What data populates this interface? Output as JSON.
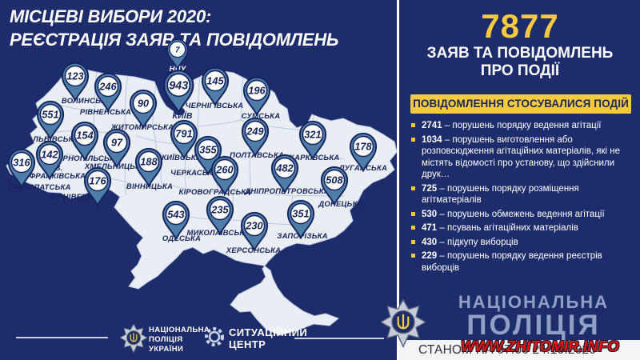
{
  "title": {
    "line1": "МІСЦЕВІ ВИБОРИ 2020:",
    "line2": "РЕЄСТРАЦІЯ ЗАЯВ ТА ПОВІДОМЛЕНЬ"
  },
  "map": {
    "regions": [
      {
        "name": [
          "НПУ"
        ],
        "value": "7",
        "pin": [
          222,
          62
        ],
        "label": [
          222,
          82
        ],
        "size": 0.78,
        "light": true
      },
      {
        "name": [
          "КИЇВ"
        ],
        "value": "943",
        "pin": [
          223,
          106
        ],
        "label": [
          228,
          140
        ],
        "size": 1.12,
        "lsize": 10.5
      },
      {
        "name": [
          "ВОЛИНСЬКА"
        ],
        "value": "123",
        "pin": [
          94,
          95
        ],
        "label": [
          108,
          122
        ]
      },
      {
        "name": [
          "РІВНЕНСЬКА"
        ],
        "value": "246",
        "pin": [
          135,
          108
        ],
        "label": [
          132,
          136
        ]
      },
      {
        "name": [
          "ЖИТОМИРСЬКА"
        ],
        "value": "90",
        "pin": [
          179,
          129
        ],
        "label": [
          178,
          155
        ]
      },
      {
        "name": [
          "ЧЕРНІГІВСЬКА"
        ],
        "value": "145",
        "pin": [
          269,
          101
        ],
        "label": [
          268,
          128
        ]
      },
      {
        "name": [
          "СУМСЬКА"
        ],
        "value": "196",
        "pin": [
          321,
          113
        ],
        "label": [
          326,
          141
        ]
      },
      {
        "name": [
          "ЛЬВІВСЬКА"
        ],
        "value": "551",
        "pin": [
          63,
          143
        ],
        "label": [
          70,
          170
        ]
      },
      {
        "name": [
          "ТЕРНОПІЛЬСЬКА"
        ],
        "value": "154",
        "pin": [
          106,
          169
        ],
        "label": [
          108,
          194
        ]
      },
      {
        "name": [
          "ХМЕЛЬНИЦЬКА"
        ],
        "value": "97",
        "pin": [
          146,
          178
        ],
        "label": [
          144,
          204
        ]
      },
      {
        "name": [
          "КИЇВСЬКА"
        ],
        "value": "791",
        "pin": [
          230,
          167
        ],
        "label": [
          227,
          193
        ]
      },
      {
        "name": [
          "ПОЛТАВСЬКА"
        ],
        "value": "249",
        "pin": [
          319,
          164
        ],
        "label": [
          321,
          190
        ]
      },
      {
        "name": [
          "ХАРКІВСЬКА"
        ],
        "value": "321",
        "pin": [
          391,
          168
        ],
        "label": [
          393,
          193
        ]
      },
      {
        "name": [
          "ЛУГАНСЬКА"
        ],
        "value": "178",
        "pin": [
          454,
          183
        ],
        "label": [
          454,
          206
        ]
      },
      {
        "name": [
          "ІВ.",
          "ФРАНКІВСЬКА"
        ],
        "value": "142",
        "pin": [
          62,
          193
        ],
        "label": [
          72,
          206
        ]
      },
      {
        "name": [
          "ЗАКАРПАТСЬКА"
        ],
        "value": "316",
        "pin": [
          27,
          203
        ],
        "label": [
          49,
          230
        ]
      },
      {
        "name": [
          "ЧЕРНІВЕЦЬКА"
        ],
        "value": "176",
        "pin": [
          122,
          226
        ],
        "label": [
          94,
          242
        ]
      },
      {
        "name": [
          "ВІННИЦЬКА"
        ],
        "value": "188",
        "pin": [
          186,
          202
        ],
        "label": [
          187,
          229
        ]
      },
      {
        "name": [
          "ЧЕРКАСЬКА"
        ],
        "value": "355",
        "pin": [
          260,
          187
        ],
        "label": [
          243,
          212
        ]
      },
      {
        "name": [
          "КІРОВОГРАДСЬКА"
        ],
        "value": "260",
        "pin": [
          281,
          212
        ],
        "label": [
          269,
          236
        ]
      },
      {
        "name": [
          "ДНІПРОПЕТРОВСЬКА"
        ],
        "value": "482",
        "pin": [
          356,
          210
        ],
        "label": [
          359,
          235
        ]
      },
      {
        "name": [
          "ДОНЕЦЬКА"
        ],
        "value": "508",
        "pin": [
          418,
          225
        ],
        "label": [
          426,
          251
        ]
      },
      {
        "name": [
          "ОДЕСЬКА"
        ],
        "value": "543",
        "pin": [
          220,
          268
        ],
        "label": [
          227,
          294
        ]
      },
      {
        "name": [
          "МИКОЛАЇВСЬКА"
        ],
        "value": "235",
        "pin": [
          275,
          262
        ],
        "label": [
          273,
          287
        ]
      },
      {
        "name": [
          "ХЕРСОНСЬКА"
        ],
        "value": "230",
        "pin": [
          318,
          282
        ],
        "label": [
          317,
          309
        ]
      },
      {
        "name": [
          "ЗАПОРІЗЬКА"
        ],
        "value": "351",
        "pin": [
          376,
          267
        ],
        "label": [
          378,
          291
        ]
      }
    ]
  },
  "footer": {
    "police_lines": [
      "НАЦІОНАЛЬНА",
      "ПОЛІЦІЯ",
      "УКРАЇНИ"
    ],
    "center_lines": [
      "СИТУАЦІЙНИЙ",
      "ЦЕНТР"
    ]
  },
  "sidebar": {
    "total": "7877",
    "subtitle1": "ЗАЯВ ТА ПОВІДОМЛЕНЬ",
    "subtitle2": "ПРО ПОДІЇ",
    "banner": "ПОВІДОМЛЕННЯ СТОСУВАЛИСЯ ПОДІЙ",
    "items": [
      {
        "num": "2741",
        "text": "порушень порядку ведення агітації"
      },
      {
        "num": "1034",
        "text": "порушень виготовлення або розповсюдження агітаційних матеріалів, які не містять відомості про установу, що здійснили друк…"
      },
      {
        "num": "725",
        "text": "порушень порядку розміщення агітматеріалів"
      },
      {
        "num": "530",
        "text": "порушень обмежень ведення агітації"
      },
      {
        "num": "471",
        "text": "псувань агітаційних матеріалів"
      },
      {
        "num": "430",
        "text": "підкупу виборців"
      },
      {
        "num": "229",
        "text": "порушень порядку ведення реєстрів виборців"
      }
    ],
    "brand1": "НАЦІОНАЛЬНА",
    "brand2": "ПОЛІЦІЯ",
    "status": "СТАНОМ НА 07.00 24.10.2020"
  },
  "watermark": "WWW.ZHITOMIR.INFO",
  "colors": {
    "background": "#1d2c6a",
    "accent_yellow": "#f6c93f",
    "pin_blue": "#4e7da9",
    "navy_text": "#14235c",
    "map_fill": "#e9edf4",
    "brand_gray": "#8fa0c2",
    "watermark_red": "#e8150f"
  },
  "chart_data": {
    "type": "map",
    "title": "МІСЦЕВІ ВИБОРИ 2020: РЕЄСТРАЦІЯ ЗАЯВ ТА ПОВІДОМЛЕНЬ",
    "total": 7877,
    "total_label": "ЗАЯВ ТА ПОВІДОМЛЕНЬ ПРО ПОДІЇ",
    "categories": [
      "НПУ",
      "КИЇВ",
      "ВОЛИНСЬКА",
      "РІВНЕНСЬКА",
      "ЖИТОМИРСЬКА",
      "ЧЕРНІГІВСЬКА",
      "СУМСЬКА",
      "ЛЬВІВСЬКА",
      "ТЕРНОПІЛЬСЬКА",
      "ХМЕЛЬНИЦЬКА",
      "КИЇВСЬКА",
      "ПОЛТАВСЬКА",
      "ХАРКІВСЬКА",
      "ЛУГАНСЬКА",
      "ІВ. ФРАНКІВСЬКА",
      "ЗАКАРПАТСЬКА",
      "ЧЕРНІВЕЦЬКА",
      "ВІННИЦЬКА",
      "ЧЕРКАСЬКА",
      "КІРОВОГРАДСЬКА",
      "ДНІПРОПЕТРОВСЬКА",
      "ДОНЕЦЬКА",
      "ОДЕСЬКА",
      "МИКОЛАЇВСЬКА",
      "ХЕРСОНСЬКА",
      "ЗАПОРІЗЬКА"
    ],
    "values": [
      7,
      943,
      123,
      246,
      90,
      145,
      196,
      551,
      154,
      97,
      791,
      249,
      321,
      178,
      142,
      316,
      176,
      188,
      355,
      260,
      482,
      508,
      543,
      235,
      230,
      351
    ],
    "breakdown_title": "ПОВІДОМЛЕННЯ СТОСУВАЛИСЯ ПОДІЙ",
    "breakdown": [
      {
        "value": 2741,
        "label": "порушень порядку ведення агітації"
      },
      {
        "value": 1034,
        "label": "порушень виготовлення або розповсюдження агітаційних матеріалів, які не містять відомості про установу, що здійснили друк…"
      },
      {
        "value": 725,
        "label": "порушень порядку розміщення агітматеріалів"
      },
      {
        "value": 530,
        "label": "порушень обмежень ведення агітації"
      },
      {
        "value": 471,
        "label": "псувань агітаційних матеріалів"
      },
      {
        "value": 430,
        "label": "підкупу виборців"
      },
      {
        "value": 229,
        "label": "порушень порядку ведення реєстрів виборців"
      }
    ],
    "status": "СТАНОМ НА 07.00 24.10.2020"
  }
}
